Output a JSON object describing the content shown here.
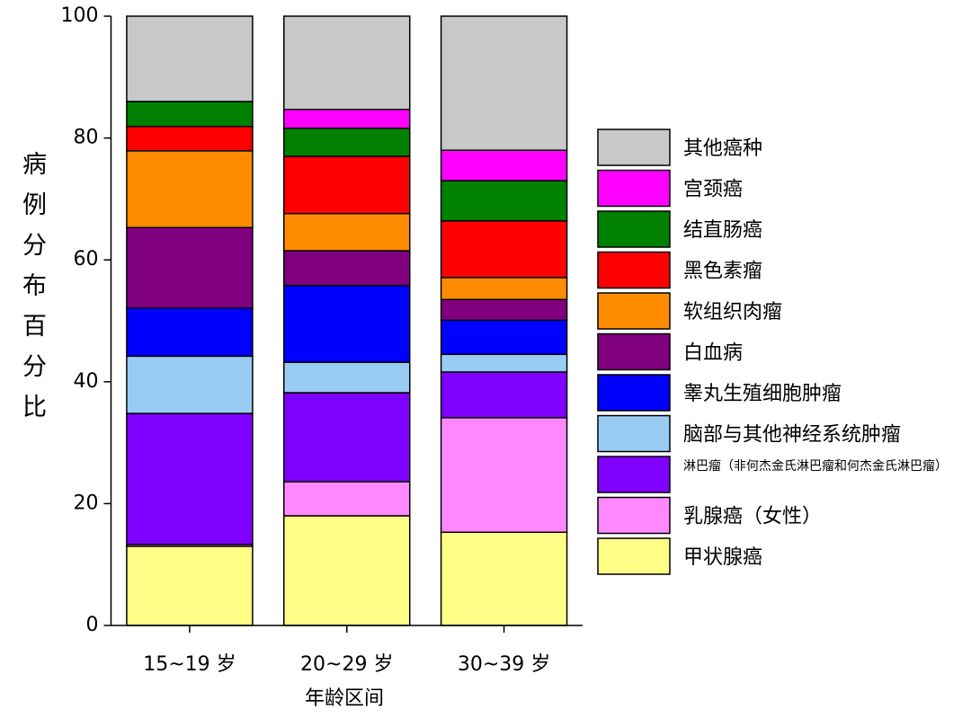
{
  "chart_data": {
    "type": "bar",
    "stacked": true,
    "x_label": "年龄区间",
    "y_label": "病例分布百分比",
    "categories": [
      "15~19 岁",
      "20~29 岁",
      "30~39 岁"
    ],
    "ylim": [
      0,
      100
    ],
    "yticks": [
      0,
      20,
      40,
      60,
      80,
      100
    ],
    "series": [
      {
        "name": "甲状腺癌",
        "color": "#ffff88",
        "values": [
          13.0,
          18.0,
          15.3
        ]
      },
      {
        "name": "乳腺癌（女性）",
        "color": "#ff88ff",
        "values": [
          0.3,
          5.6,
          18.8
        ]
      },
      {
        "name": "淋巴瘤（非何杰金氏淋巴瘤和何杰金氏淋巴瘤）",
        "color": "#8000ff",
        "values": [
          21.5,
          14.6,
          7.5
        ]
      },
      {
        "name": "脑部与其他神经系统肿瘤",
        "color": "#99ccf5",
        "values": [
          9.4,
          5.0,
          2.9
        ]
      },
      {
        "name": "睾丸生殖细胞肿瘤",
        "color": "#0000ff",
        "values": [
          7.9,
          12.6,
          5.6
        ]
      },
      {
        "name": "白血病",
        "color": "#800080",
        "values": [
          13.2,
          5.7,
          3.4
        ]
      },
      {
        "name": "软组织肉瘤",
        "color": "#ff8c00",
        "values": [
          12.6,
          6.1,
          3.6
        ]
      },
      {
        "name": "黑色素瘤",
        "color": "#ff0000",
        "values": [
          4.0,
          9.4,
          9.3
        ]
      },
      {
        "name": "结直肠癌",
        "color": "#008000",
        "values": [
          4.1,
          4.6,
          6.6
        ]
      },
      {
        "name": "宫颈癌",
        "color": "#ff00ff",
        "values": [
          0,
          3.1,
          5.0
        ]
      },
      {
        "name": "其他癌种",
        "color": "#c8c8c8",
        "values": [
          14.0,
          15.3,
          22.0
        ]
      }
    ]
  }
}
